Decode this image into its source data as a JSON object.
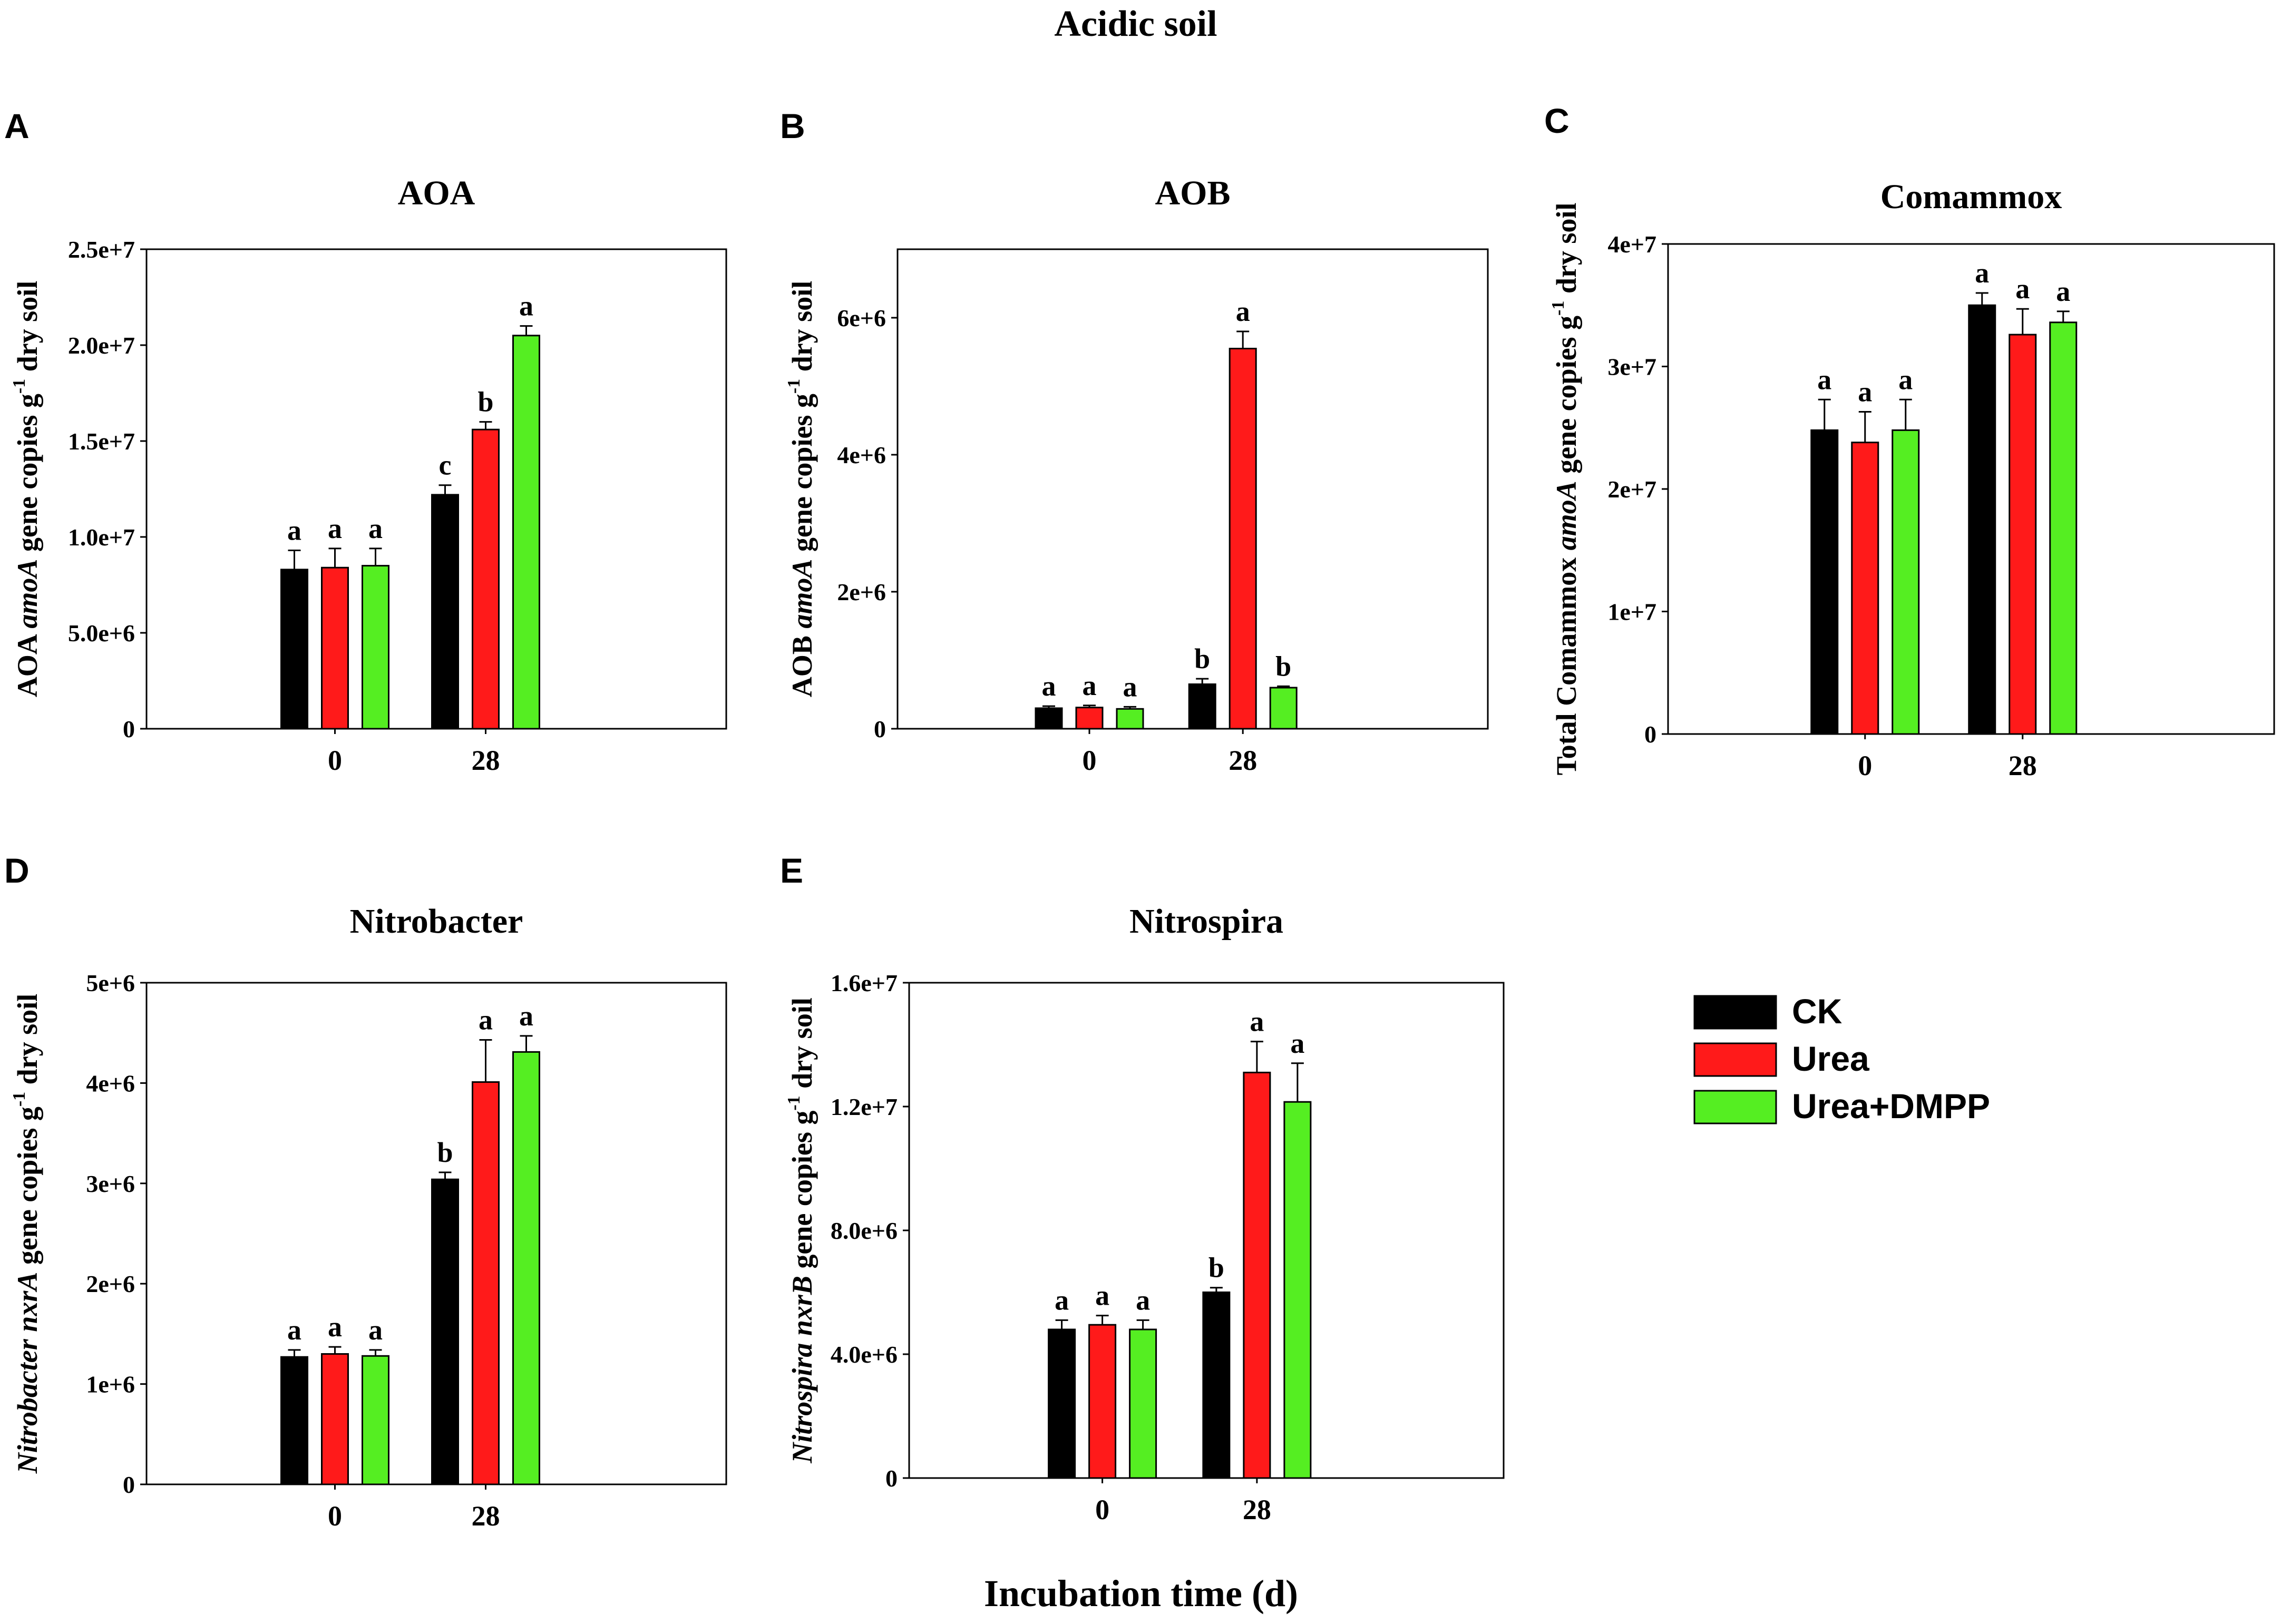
{
  "figure_title": "Acidic soil",
  "x_axis_label": "Incubation time (d)",
  "colors": {
    "CK": "#000000",
    "Urea": "#ff1a1a",
    "Urea+DMPP": "#55ee22",
    "axis": "#000000"
  },
  "legend": {
    "items": [
      {
        "label": "CK",
        "color": "#000000"
      },
      {
        "label": "Urea",
        "color": "#ff1a1a"
      },
      {
        "label": "Urea+DMPP",
        "color": "#55ee22"
      }
    ]
  },
  "chart_data": [
    {
      "type": "bar",
      "panel": "A",
      "title": "AOA",
      "ylabel_parts": [
        {
          "t": "AOA ",
          "i": false
        },
        {
          "t": "amoA",
          "i": true
        },
        {
          "t": " gene copies g",
          "i": false
        },
        {
          "t": "-1",
          "i": false,
          "sup": true
        },
        {
          "t": " dry soil",
          "i": false
        }
      ],
      "categories": [
        "0",
        "28"
      ],
      "ylim": [
        0,
        25000000
      ],
      "yticks": [
        {
          "v": 0,
          "label": "0"
        },
        {
          "v": 5000000,
          "label": "5.0e+6"
        },
        {
          "v": 10000000,
          "label": "1.0e+7"
        },
        {
          "v": 15000000,
          "label": "1.5e+7"
        },
        {
          "v": 20000000,
          "label": "2.0e+7"
        },
        {
          "v": 25000000,
          "label": "2.5e+7"
        }
      ],
      "series": [
        {
          "name": "CK",
          "values": [
            8300000,
            12200000
          ],
          "errors": [
            1000000,
            500000
          ],
          "letters": [
            "a",
            "c"
          ]
        },
        {
          "name": "Urea",
          "values": [
            8400000,
            15600000
          ],
          "errors": [
            1000000,
            400000
          ],
          "letters": [
            "a",
            "b"
          ]
        },
        {
          "name": "Urea+DMPP",
          "values": [
            8500000,
            20500000
          ],
          "errors": [
            900000,
            500000
          ],
          "letters": [
            "a",
            "a"
          ]
        }
      ]
    },
    {
      "type": "bar",
      "panel": "B",
      "title": "AOB",
      "ylabel_parts": [
        {
          "t": "AOB ",
          "i": false
        },
        {
          "t": "amoA",
          "i": true
        },
        {
          "t": " gene copies g",
          "i": false
        },
        {
          "t": "-1",
          "i": false,
          "sup": true
        },
        {
          "t": " dry soil",
          "i": false
        }
      ],
      "categories": [
        "0",
        "28"
      ],
      "ylim": [
        0,
        7000000
      ],
      "yticks": [
        {
          "v": 0,
          "label": "0"
        },
        {
          "v": 2000000,
          "label": "2e+6"
        },
        {
          "v": 4000000,
          "label": "4e+6"
        },
        {
          "v": 6000000,
          "label": "6e+6"
        }
      ],
      "series": [
        {
          "name": "CK",
          "values": [
            300000,
            650000
          ],
          "errors": [
            30000,
            80000
          ],
          "letters": [
            "a",
            "b"
          ]
        },
        {
          "name": "Urea",
          "values": [
            310000,
            5550000
          ],
          "errors": [
            30000,
            250000
          ],
          "letters": [
            "a",
            "a"
          ]
        },
        {
          "name": "Urea+DMPP",
          "values": [
            290000,
            600000
          ],
          "errors": [
            30000,
            20000
          ],
          "letters": [
            "a",
            "b"
          ]
        }
      ]
    },
    {
      "type": "bar",
      "panel": "C",
      "title": "Comammox",
      "ylabel_parts": [
        {
          "t": "Total Comammox ",
          "i": false
        },
        {
          "t": "amoA",
          "i": true
        },
        {
          "t": " gene copies g",
          "i": false
        },
        {
          "t": "-1",
          "i": false,
          "sup": true
        },
        {
          "t": " dry soil",
          "i": false
        }
      ],
      "categories": [
        "0",
        "28"
      ],
      "ylim": [
        0,
        40000000
      ],
      "yticks": [
        {
          "v": 0,
          "label": "0"
        },
        {
          "v": 10000000,
          "label": "1e+7"
        },
        {
          "v": 20000000,
          "label": "2e+7"
        },
        {
          "v": 30000000,
          "label": "3e+7"
        },
        {
          "v": 40000000,
          "label": "4e+7"
        }
      ],
      "series": [
        {
          "name": "CK",
          "values": [
            24800000,
            35000000
          ],
          "errors": [
            2500000,
            1000000
          ],
          "letters": [
            "a",
            "a"
          ]
        },
        {
          "name": "Urea",
          "values": [
            23800000,
            32600000
          ],
          "errors": [
            2500000,
            2100000
          ],
          "letters": [
            "a",
            "a"
          ]
        },
        {
          "name": "Urea+DMPP",
          "values": [
            24800000,
            33600000
          ],
          "errors": [
            2500000,
            900000
          ],
          "letters": [
            "a",
            "a"
          ]
        }
      ]
    },
    {
      "type": "bar",
      "panel": "D",
      "title": "Nitrobacter",
      "ylabel_parts": [
        {
          "t": "Nitrobacter",
          "i": true
        },
        {
          "t": " ",
          "i": false
        },
        {
          "t": "nxrA",
          "i": true
        },
        {
          "t": " gene copies g",
          "i": false
        },
        {
          "t": "-1",
          "i": false,
          "sup": true
        },
        {
          "t": " dry soil",
          "i": false
        }
      ],
      "categories": [
        "0",
        "28"
      ],
      "ylim": [
        0,
        5000000
      ],
      "yticks": [
        {
          "v": 0,
          "label": "0"
        },
        {
          "v": 1000000,
          "label": "1e+6"
        },
        {
          "v": 2000000,
          "label": "2e+6"
        },
        {
          "v": 3000000,
          "label": "3e+6"
        },
        {
          "v": 4000000,
          "label": "4e+6"
        },
        {
          "v": 5000000,
          "label": "5e+6"
        }
      ],
      "series": [
        {
          "name": "CK",
          "values": [
            1270000,
            3040000
          ],
          "errors": [
            70000,
            70000
          ],
          "letters": [
            "a",
            "b"
          ]
        },
        {
          "name": "Urea",
          "values": [
            1300000,
            4010000
          ],
          "errors": [
            70000,
            420000
          ],
          "letters": [
            "a",
            "a"
          ]
        },
        {
          "name": "Urea+DMPP",
          "values": [
            1280000,
            4310000
          ],
          "errors": [
            60000,
            160000
          ],
          "letters": [
            "a",
            "a"
          ]
        }
      ]
    },
    {
      "type": "bar",
      "panel": "E",
      "title": "Nitrospira",
      "ylabel_parts": [
        {
          "t": "Nitrospira",
          "i": true
        },
        {
          "t": " ",
          "i": false
        },
        {
          "t": "nxrB",
          "i": true
        },
        {
          "t": " gene copies g",
          "i": false
        },
        {
          "t": "-1",
          "i": false,
          "sup": true
        },
        {
          "t": " dry soil",
          "i": false
        }
      ],
      "categories": [
        "0",
        "28"
      ],
      "ylim": [
        0,
        16000000
      ],
      "yticks": [
        {
          "v": 0,
          "label": "0"
        },
        {
          "v": 4000000,
          "label": "4.0e+6"
        },
        {
          "v": 8000000,
          "label": "8.0e+6"
        },
        {
          "v": 12000000,
          "label": "1.2e+7"
        },
        {
          "v": 16000000,
          "label": "1.6e+7"
        }
      ],
      "series": [
        {
          "name": "CK",
          "values": [
            4800000,
            6000000
          ],
          "errors": [
            300000,
            150000
          ],
          "letters": [
            "a",
            "b"
          ]
        },
        {
          "name": "Urea",
          "values": [
            4950000,
            13100000
          ],
          "errors": [
            300000,
            1000000
          ],
          "letters": [
            "a",
            "a"
          ]
        },
        {
          "name": "Urea+DMPP",
          "values": [
            4800000,
            12150000
          ],
          "errors": [
            300000,
            1250000
          ],
          "letters": [
            "a",
            "a"
          ]
        }
      ]
    }
  ]
}
